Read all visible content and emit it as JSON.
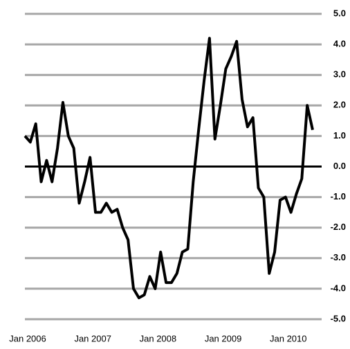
{
  "chart_data": {
    "type": "line",
    "categories": [
      "Jan 2006",
      null,
      null,
      null,
      null,
      null,
      null,
      null,
      null,
      null,
      null,
      null,
      "Jan 2007",
      null,
      null,
      null,
      null,
      null,
      null,
      null,
      null,
      null,
      null,
      null,
      "Jan 2008",
      null,
      null,
      null,
      null,
      null,
      null,
      null,
      null,
      null,
      null,
      null,
      "Jan 2009",
      null,
      null,
      null,
      null,
      null,
      null,
      null,
      null,
      null,
      null,
      null,
      "Jan 2010",
      null,
      null,
      null,
      null,
      null
    ],
    "series": [
      {
        "color": "#000000",
        "values": [
          1.0,
          0.8,
          1.4,
          -0.5,
          0.2,
          -0.5,
          0.6,
          2.1,
          1.0,
          0.6,
          -1.2,
          -0.5,
          0.3,
          -1.5,
          -1.5,
          -1.2,
          -1.5,
          -1.4,
          -2.0,
          -2.4,
          -4.0,
          -4.3,
          -4.2,
          -3.6,
          -4.0,
          -2.8,
          -3.8,
          -3.8,
          -3.5,
          -2.8,
          -2.7,
          -0.5,
          1.2,
          2.8,
          4.2,
          0.9,
          2.0,
          3.2,
          3.6,
          4.1,
          2.2,
          1.3,
          1.6,
          -0.7,
          -1.0,
          -3.5,
          -2.8,
          -1.1,
          -1.0,
          -1.5,
          -0.9,
          -0.4,
          2.0,
          1.2
        ]
      }
    ],
    "ylim": [
      -5,
      5
    ],
    "yticks": [
      {
        "value": 5,
        "label": "5.0"
      },
      {
        "value": 4,
        "label": "4.0"
      },
      {
        "value": 3,
        "label": "3.0"
      },
      {
        "value": 2,
        "label": "2.0"
      },
      {
        "value": 1,
        "label": "1.0"
      },
      {
        "value": 0,
        "label": "0.0"
      },
      {
        "value": -1,
        "label": "-1.0"
      },
      {
        "value": -2,
        "label": "-2.0"
      },
      {
        "value": -3,
        "label": "-3.0"
      },
      {
        "value": -4,
        "label": "-4.0"
      },
      {
        "value": -5,
        "label": "-5.0"
      }
    ],
    "grid": true
  }
}
